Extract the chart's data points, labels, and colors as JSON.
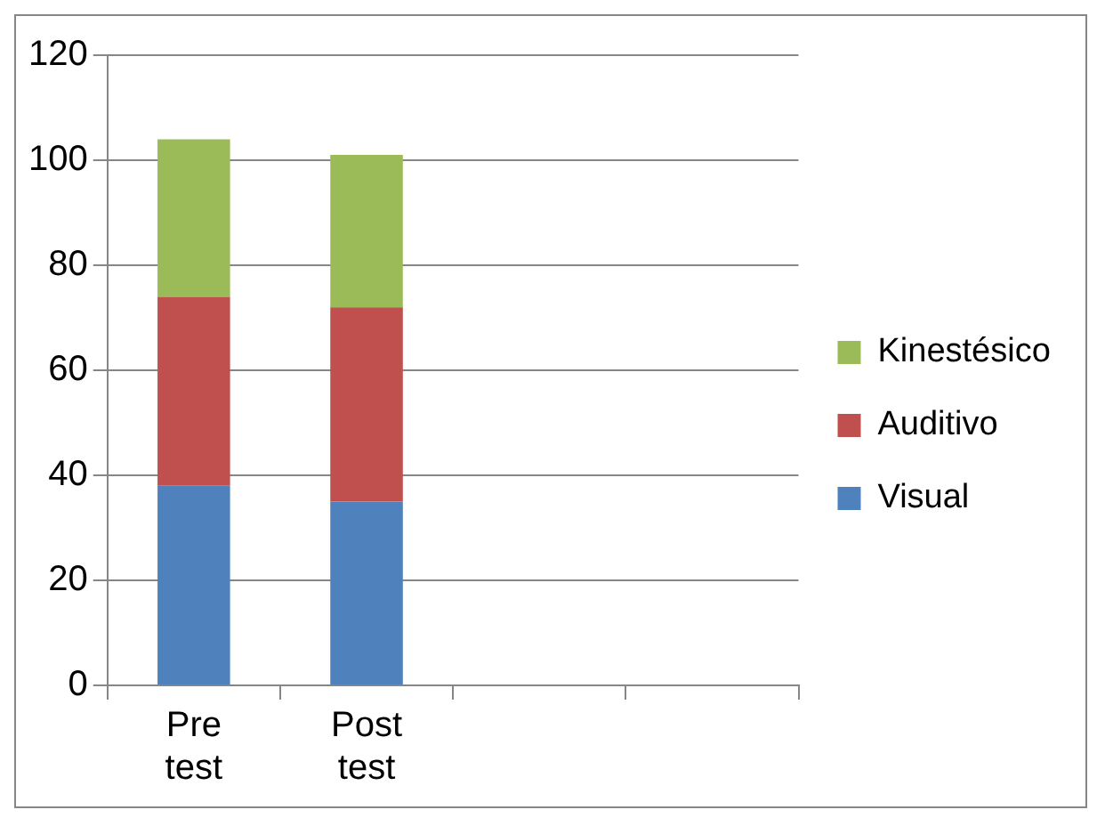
{
  "chart_data": {
    "type": "bar",
    "stacked": true,
    "categories": [
      "Pre test",
      "Post test",
      null,
      null
    ],
    "series": [
      {
        "name": "Visual",
        "color": "#4f81bd",
        "values": [
          38,
          35,
          null,
          null
        ]
      },
      {
        "name": "Auditivo",
        "color": "#c0504d",
        "values": [
          36,
          37,
          null,
          null
        ]
      },
      {
        "name": "Kinestésico",
        "color": "#9bbb59",
        "values": [
          30,
          29,
          null,
          null
        ]
      }
    ],
    "ylim": [
      0,
      120
    ],
    "yticks": [
      0,
      20,
      40,
      60,
      80,
      100,
      120
    ],
    "grid": "y",
    "legend": "right"
  }
}
